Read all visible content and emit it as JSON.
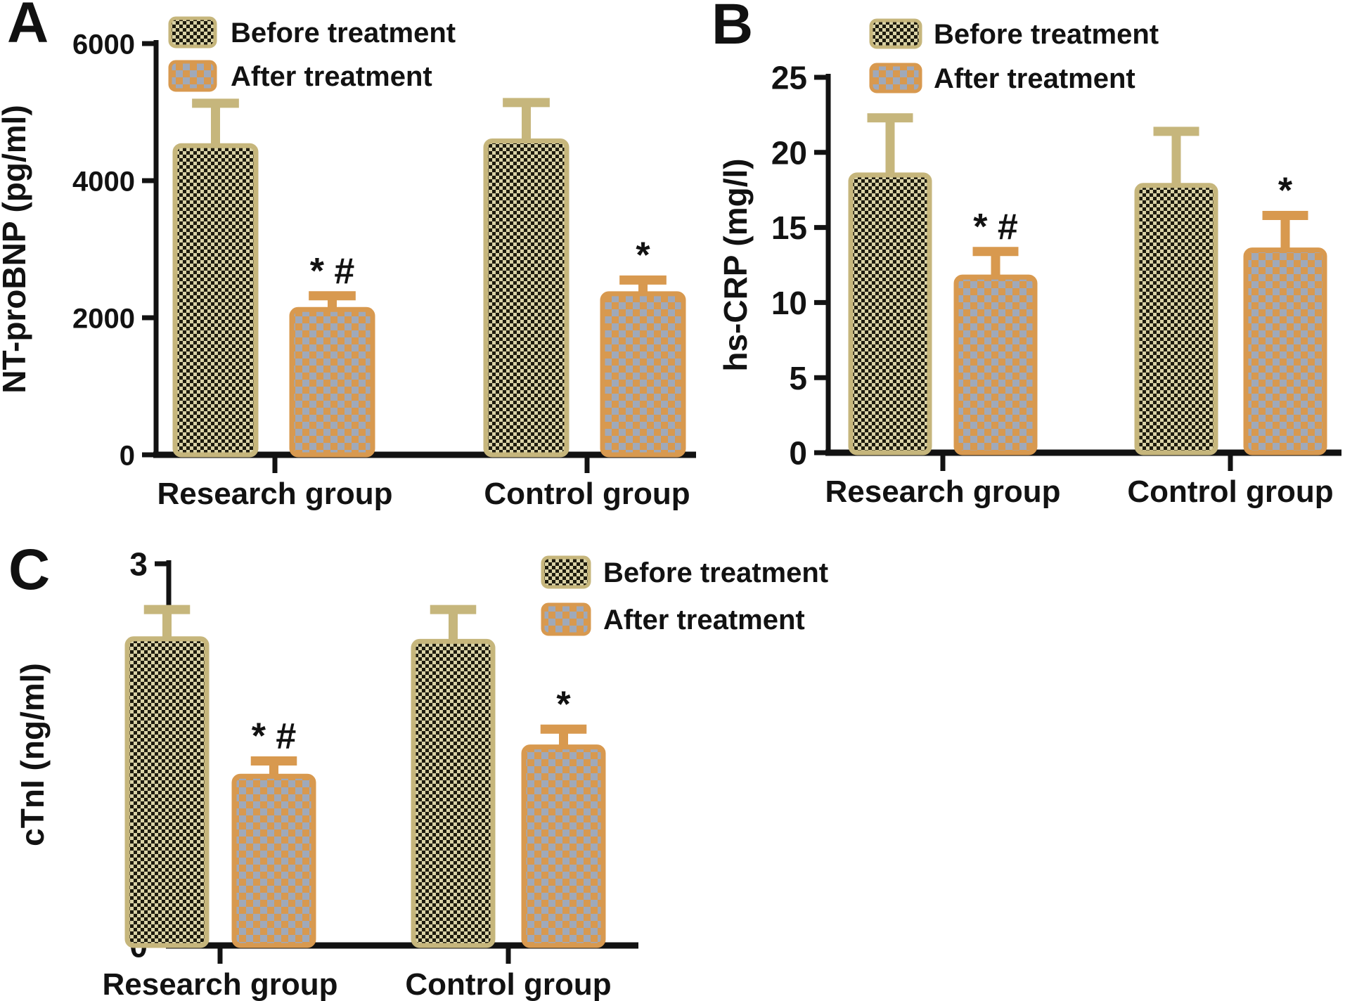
{
  "figure": {
    "legend": {
      "before": "Before treatment",
      "after": "After treatment"
    },
    "colors": {
      "axis": "#121212",
      "before_border": "#c6b67c",
      "before_fill_bg": "#d9d2a6",
      "before_fill_fg": "#1e1b0e",
      "after_border": "#d8994f",
      "after_fill_bg": "#9fa9ba",
      "after_fill_fg": "#d8994f"
    }
  },
  "chart_data": [
    {
      "id": "A",
      "panel_label": "A",
      "type": "bar",
      "title": "",
      "xlabel": "",
      "ylabel": "NT-proBNP (pg/ml)",
      "ylim": [
        0,
        6000
      ],
      "yticks": [
        0,
        2000,
        4000,
        6000
      ],
      "categories": [
        "Research group",
        "Control group"
      ],
      "series": [
        {
          "name": "Before treatment",
          "values": [
            4510,
            4580
          ],
          "err_top": [
            5130,
            5140
          ],
          "annotations": [
            "",
            ""
          ]
        },
        {
          "name": "After treatment",
          "values": [
            2120,
            2350
          ],
          "err_top": [
            2320,
            2550
          ],
          "annotations": [
            "* #",
            "*"
          ]
        }
      ],
      "legend_position": "top-left-inside",
      "grid": false
    },
    {
      "id": "B",
      "panel_label": "B",
      "type": "bar",
      "title": "",
      "xlabel": "",
      "ylabel": "hs-CRP (mg/l)",
      "ylim": [
        0,
        25
      ],
      "yticks": [
        0,
        5,
        10,
        15,
        20,
        25
      ],
      "categories": [
        "Research group",
        "Control group"
      ],
      "series": [
        {
          "name": "Before treatment",
          "values": [
            18.5,
            17.8
          ],
          "err_top": [
            22.3,
            21.4
          ],
          "annotations": [
            "",
            ""
          ]
        },
        {
          "name": "After treatment",
          "values": [
            11.7,
            13.5
          ],
          "err_top": [
            13.4,
            15.8
          ],
          "annotations": [
            "* #",
            "*"
          ]
        }
      ],
      "legend_position": "top-left-inside",
      "grid": false
    },
    {
      "id": "C",
      "panel_label": "C",
      "type": "bar",
      "title": "",
      "xlabel": "",
      "ylabel": "cTnI (ng/ml)",
      "ylim": [
        0,
        3
      ],
      "yticks": [
        0,
        1,
        2,
        3
      ],
      "categories": [
        "Research group",
        "Control group"
      ],
      "series": [
        {
          "name": "Before treatment",
          "values": [
            2.41,
            2.39
          ],
          "err_top": [
            2.64,
            2.64
          ],
          "annotations": [
            "",
            ""
          ]
        },
        {
          "name": "After treatment",
          "values": [
            1.33,
            1.56
          ],
          "err_top": [
            1.45,
            1.7
          ],
          "annotations": [
            "* #",
            "*"
          ]
        }
      ],
      "legend_position": "top-right",
      "grid": false
    }
  ]
}
